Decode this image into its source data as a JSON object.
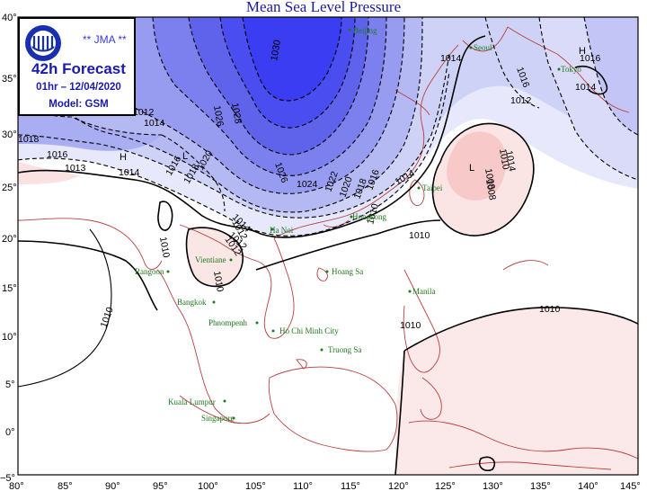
{
  "title": "Mean Sea Level Pressure",
  "info": {
    "org": "** JMA **",
    "forecast": "42h Forecast",
    "datetime": "01hr – 12/04/2020",
    "model": "Model: GSM"
  },
  "lat_ticks": [
    "40°",
    "35°",
    "30°",
    "25°",
    "20°",
    "15°",
    "10°",
    "5°",
    "0°",
    "−5°"
  ],
  "lon_ticks": [
    "80°",
    "85°",
    "90°",
    "95°",
    "100°",
    "105°",
    "110°",
    "115°",
    "120°",
    "125°",
    "130°",
    "135°",
    "140°",
    "145°"
  ],
  "cities": [
    "Beijing",
    "Seoul",
    "Tokyo",
    "Taipei",
    "Hongkong",
    "Ha Noi",
    "Vientiane",
    "Hoang Sa",
    "Rangoon",
    "Bangkok",
    "Phnompenh",
    "Ho Chi Minh City",
    "Truong Sa",
    "Manila",
    "Kuala Lumpur",
    "Singapore"
  ],
  "isobar_labels": [
    "1030",
    "1028",
    "1026",
    "1026",
    "1024",
    "1022",
    "1020",
    "1018",
    "1016",
    "1014",
    "1012",
    "1010",
    "1008",
    "1018",
    "1016",
    "1013",
    "1014",
    "1016",
    "1018",
    "1020",
    "1014",
    "1012",
    "1010",
    "1010",
    "1012",
    "1014",
    "1012",
    "1010",
    "1014",
    "1016",
    "1014",
    "1016",
    "1014",
    "1012",
    "1010",
    "1008",
    "1010",
    "1010",
    "1012",
    "1010"
  ],
  "pressure_centers": [
    "H",
    "H",
    "L",
    "L"
  ],
  "colors": {
    "high_fill": "#3a3af0",
    "coast": "#b84040",
    "isobar": "#000000",
    "low_fill": "#fbdada",
    "city_text": "#1e7a1e"
  }
}
